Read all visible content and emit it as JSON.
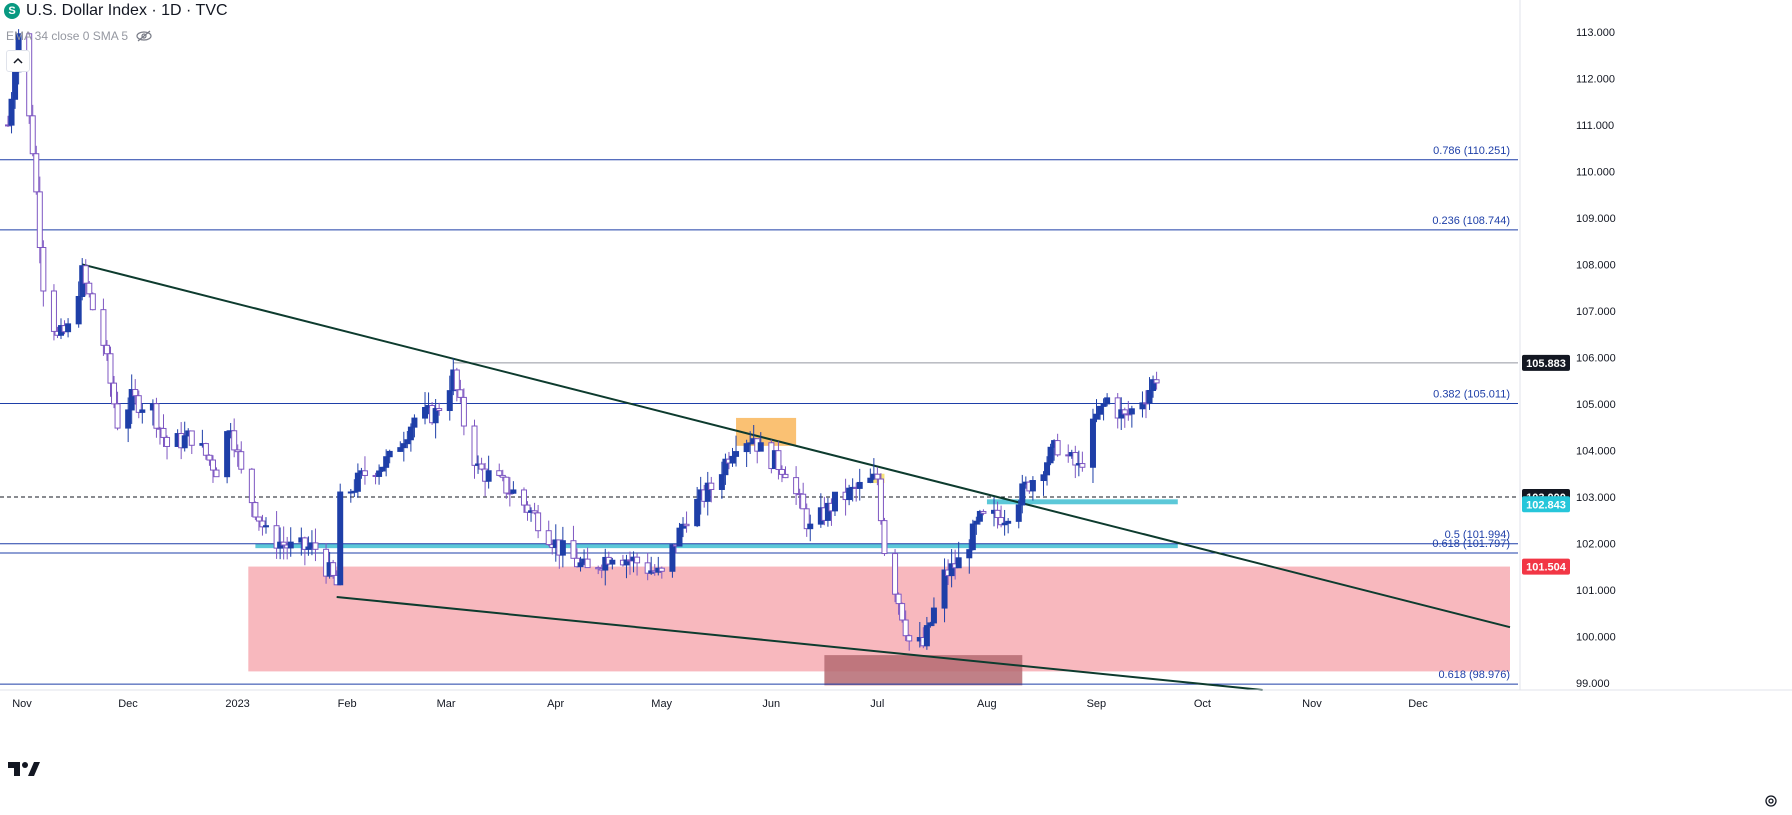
{
  "header": {
    "symbol_badge": "S",
    "title": "U.S. Dollar Index · 1D · TVC",
    "indicator": "EMA 34 close 0 SMA 5"
  },
  "icons": [
    "eye-hidden-icon",
    "chevron-up-icon",
    "tradingview-logo-icon",
    "gear-icon"
  ],
  "colors": {
    "up": "#1e3fa8",
    "down": "#7e57c2",
    "level_line": "#1e3fa8",
    "trendline": "#0d3b2e",
    "cyan_zone": "#5cc8d8",
    "red_zone": "#f5a0a8",
    "dark_red_zone": "#b56a72",
    "orange_zone": "#f9b65a",
    "yellow_zone": "#f5e06a",
    "last_price_label": "#131722",
    "zone_label_red": "#f23645",
    "zone_label_cyan": "#26c6da"
  },
  "chart_data": {
    "type": "candlestick",
    "timeframe": "1D",
    "x_range": [
      "2022-11-01",
      "2023-12-31"
    ],
    "ylim": [
      98.85,
      113.6
    ],
    "grid": false,
    "x_tick_labels": [
      {
        "date": "2022-11-01",
        "label": "Nov"
      },
      {
        "date": "2022-12-01",
        "label": "Dec"
      },
      {
        "date": "2023-01-01",
        "label": "2023"
      },
      {
        "date": "2023-02-01",
        "label": "Feb"
      },
      {
        "date": "2023-03-01",
        "label": "Mar"
      },
      {
        "date": "2023-04-01",
        "label": "Apr"
      },
      {
        "date": "2023-05-01",
        "label": "May"
      },
      {
        "date": "2023-06-01",
        "label": "Jun"
      },
      {
        "date": "2023-07-01",
        "label": "Jul"
      },
      {
        "date": "2023-08-01",
        "label": "Aug"
      },
      {
        "date": "2023-09-01",
        "label": "Sep"
      },
      {
        "date": "2023-10-01",
        "label": "Oct"
      },
      {
        "date": "2023-11-01",
        "label": "Nov"
      },
      {
        "date": "2023-12-01",
        "label": "Dec"
      }
    ],
    "y_tick_labels": [
      "99.000",
      "100.000",
      "101.000",
      "102.000",
      "103.000",
      "104.000",
      "105.000",
      "106.000",
      "107.000",
      "108.000",
      "109.000",
      "110.000",
      "111.000",
      "112.000",
      "113.000"
    ],
    "horizontal_levels": [
      {
        "price": 110.251,
        "label": "0.786 (110.251)"
      },
      {
        "price": 108.744,
        "label": "0.236 (108.744)"
      },
      {
        "price": 105.011,
        "label": "0.382 (105.011)"
      },
      {
        "price": 101.994,
        "label": "0.5 (101.994)"
      },
      {
        "price": 101.797,
        "label": "0.618 (101.797)"
      },
      {
        "price": 98.976,
        "label": "0.618 (98.976)"
      }
    ],
    "price_labels": [
      {
        "price": 105.883,
        "label": "105.883",
        "kind": "last"
      },
      {
        "price": 103.0,
        "label": "103.000",
        "kind": "level"
      },
      {
        "price": 102.843,
        "label": "102.843",
        "kind": "cyan"
      },
      {
        "price": 101.504,
        "label": "101.504",
        "kind": "red"
      }
    ],
    "dashed_level": 103.0,
    "last_price": 105.883,
    "trendlines": [
      {
        "from": [
          "2022-11-22",
          108.0
        ],
        "to": [
          "2023-12-31",
          100.2
        ]
      },
      {
        "from": [
          "2023-02-02",
          100.85
        ],
        "to": [
          "2023-10-22",
          98.85
        ]
      }
    ],
    "zones": [
      {
        "kind": "cyan",
        "from": "2023-01-10",
        "to": "2023-09-28",
        "low": 101.9,
        "high": 102.0
      },
      {
        "kind": "cyan",
        "from": "2023-08-05",
        "to": "2023-09-28",
        "low": 102.843,
        "high": 102.95
      },
      {
        "kind": "red",
        "from": "2023-01-08",
        "to": "2023-12-31",
        "low": 99.25,
        "high": 101.504
      },
      {
        "kind": "dark_red",
        "from": "2023-06-20",
        "to": "2023-08-15",
        "low": 98.95,
        "high": 99.6
      },
      {
        "kind": "orange",
        "from": "2023-05-26",
        "to": "2023-06-12",
        "low": 104.1,
        "high": 104.7
      },
      {
        "kind": "yellow",
        "from": "2023-07-03",
        "to": "2023-07-07",
        "low": 103.3,
        "high": 103.5
      }
    ],
    "anchor_points": [
      [
        "2022-11-01",
        111.0
      ],
      [
        "2022-11-04",
        113.0
      ],
      [
        "2022-11-08",
        110.5
      ],
      [
        "2022-11-11",
        107.6
      ],
      [
        "2022-11-15",
        106.4
      ],
      [
        "2022-11-18",
        106.6
      ],
      [
        "2022-11-22",
        107.8
      ],
      [
        "2022-11-28",
        106.3
      ],
      [
        "2022-12-02",
        104.6
      ],
      [
        "2022-12-06",
        105.1
      ],
      [
        "2022-12-12",
        104.9
      ],
      [
        "2022-12-16",
        104.1
      ],
      [
        "2022-12-23",
        104.3
      ],
      [
        "2022-12-30",
        103.6
      ],
      [
        "2023-01-03",
        104.6
      ],
      [
        "2023-01-06",
        103.5
      ],
      [
        "2023-01-13",
        102.2
      ],
      [
        "2023-01-20",
        101.9
      ],
      [
        "2023-01-27",
        101.9
      ],
      [
        "2023-02-02",
        101.1
      ],
      [
        "2023-02-03",
        102.9
      ],
      [
        "2023-02-10",
        103.5
      ],
      [
        "2023-02-17",
        103.8
      ],
      [
        "2023-02-24",
        104.7
      ],
      [
        "2023-03-02",
        104.8
      ],
      [
        "2023-03-07",
        105.6
      ],
      [
        "2023-03-10",
        104.6
      ],
      [
        "2023-03-14",
        103.6
      ],
      [
        "2023-03-20",
        103.3
      ],
      [
        "2023-03-24",
        103.1
      ],
      [
        "2023-03-31",
        102.5
      ],
      [
        "2023-04-06",
        101.9
      ],
      [
        "2023-04-14",
        101.4
      ],
      [
        "2023-04-21",
        101.8
      ],
      [
        "2023-04-28",
        101.6
      ],
      [
        "2023-05-05",
        101.3
      ],
      [
        "2023-05-12",
        102.6
      ],
      [
        "2023-05-19",
        103.2
      ],
      [
        "2023-05-26",
        104.2
      ],
      [
        "2023-05-31",
        104.3
      ],
      [
        "2023-06-02",
        104.0
      ],
      [
        "2023-06-09",
        103.6
      ],
      [
        "2023-06-16",
        102.3
      ],
      [
        "2023-06-23",
        102.9
      ],
      [
        "2023-06-30",
        103.2
      ],
      [
        "2023-07-05",
        103.4
      ],
      [
        "2023-07-07",
        101.9
      ],
      [
        "2023-07-12",
        100.5
      ],
      [
        "2023-07-14",
        99.9
      ],
      [
        "2023-07-18",
        99.8
      ],
      [
        "2023-07-24",
        101.3
      ],
      [
        "2023-07-28",
        101.6
      ],
      [
        "2023-08-03",
        102.5
      ],
      [
        "2023-08-10",
        102.6
      ],
      [
        "2023-08-18",
        103.4
      ],
      [
        "2023-08-25",
        104.1
      ],
      [
        "2023-08-31",
        103.6
      ],
      [
        "2023-09-05",
        104.7
      ],
      [
        "2023-09-08",
        105.1
      ],
      [
        "2023-09-13",
        104.7
      ],
      [
        "2023-09-19",
        105.2
      ],
      [
        "2023-09-22",
        105.6
      ]
    ]
  }
}
